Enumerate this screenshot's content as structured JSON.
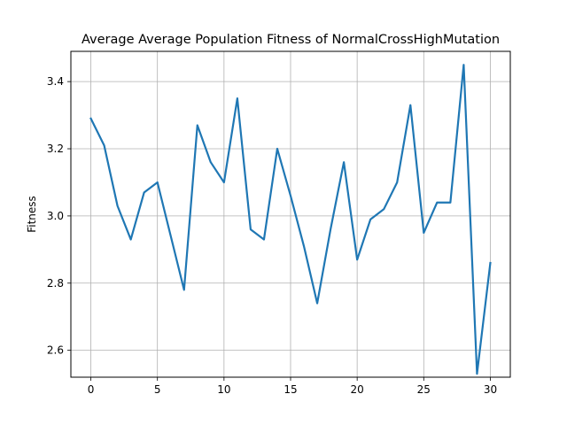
{
  "chart_data": {
    "type": "line",
    "title": "Average Average Population Fitness of NormalCrossHighMutation",
    "xlabel": "",
    "ylabel": "Fitness",
    "xlim": [
      -1.5,
      31.5
    ],
    "ylim": [
      2.52,
      3.49
    ],
    "xticks": [
      0,
      5,
      10,
      15,
      20,
      25,
      30
    ],
    "yticks": [
      2.6,
      2.8,
      3.0,
      3.2,
      3.4
    ],
    "ytick_labels": [
      "2.6",
      "2.8",
      "3.0",
      "3.2",
      "3.4"
    ],
    "grid": true,
    "line_color": "#1f77b4",
    "series": [
      {
        "x": [
          0,
          1,
          2,
          3,
          4,
          5,
          6,
          7,
          8,
          9,
          10,
          11,
          12,
          13,
          14,
          15,
          16,
          17,
          18,
          19,
          20,
          21,
          22,
          23,
          24,
          25,
          26,
          27,
          28,
          29,
          30
        ],
        "values": [
          3.29,
          3.21,
          3.03,
          2.93,
          3.07,
          3.1,
          2.94,
          2.78,
          3.27,
          3.16,
          3.1,
          3.35,
          2.96,
          2.93,
          3.2,
          3.06,
          2.91,
          2.74,
          2.96,
          3.16,
          2.87,
          2.99,
          3.02,
          3.1,
          3.33,
          2.95,
          3.04,
          3.04,
          3.45,
          2.53,
          2.86
        ]
      }
    ]
  }
}
